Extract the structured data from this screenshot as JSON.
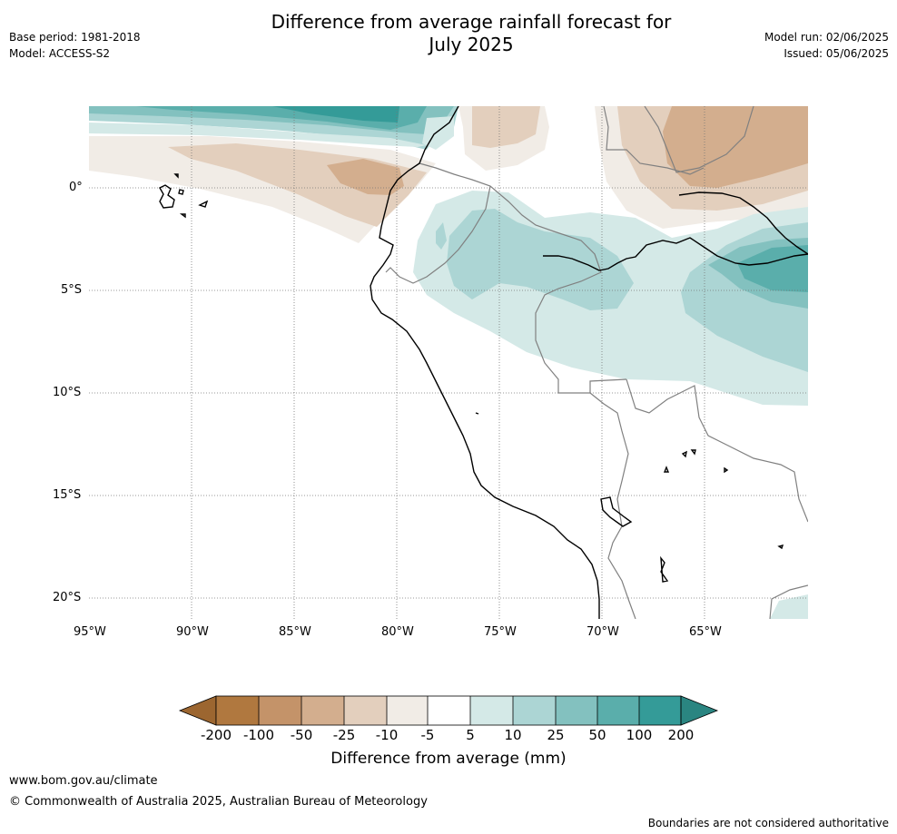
{
  "header": {
    "title_line1": "Difference from average rainfall forecast for",
    "title_line2": "July 2025",
    "base_period": "Base period: 1981-2018",
    "model": "Model: ACCESS-S2",
    "model_run": "Model run: 02/06/2025",
    "issued": "Issued: 05/06/2025"
  },
  "map": {
    "lat_labels": [
      "0°",
      "5°S",
      "10°S",
      "15°S",
      "20°S"
    ],
    "lon_labels": [
      "95°W",
      "90°W",
      "85°W",
      "80°W",
      "75°W",
      "70°W",
      "65°W"
    ],
    "coastline_color": "#000000",
    "border_color": "#808080",
    "grid_style": "dotted"
  },
  "colorbar": {
    "title": "Difference from average (mm)",
    "labels": [
      "-200",
      "-100",
      "-50",
      "-25",
      "-10",
      "-5",
      "5",
      "10",
      "25",
      "50",
      "100",
      "200"
    ],
    "colors": [
      "#9c6630",
      "#b0783f",
      "#c49369",
      "#d3ae8e",
      "#e3cfbd",
      "#f1ece6",
      "#ffffff",
      "#d4e9e7",
      "#acd5d4",
      "#83c1bf",
      "#5aaeab",
      "#349b98",
      "#2a8581"
    ]
  },
  "footer": {
    "url": "www.bom.gov.au/climate",
    "copyright": "© Commonwealth of Australia 2025, Australian Bureau of Meteorology",
    "note": "Boundaries are not considered authoritative"
  }
}
